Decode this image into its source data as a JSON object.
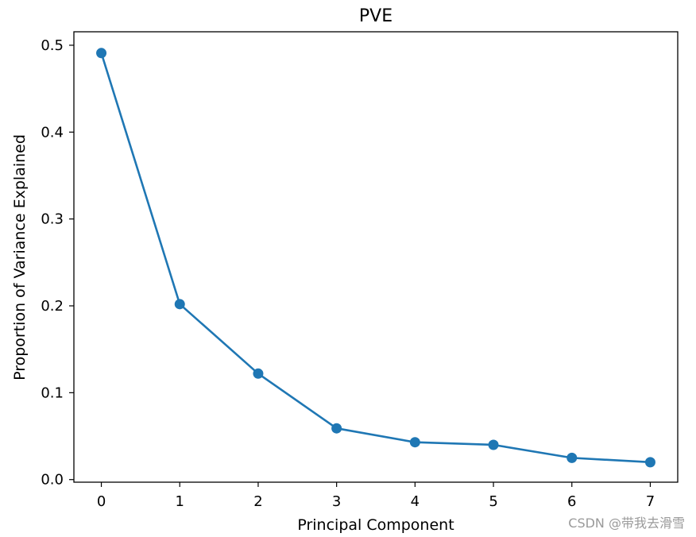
{
  "chart_data": {
    "type": "line",
    "title": "PVE",
    "xlabel": "Principal Component",
    "ylabel": "Proportion of Variance Explained",
    "x": [
      0,
      1,
      2,
      3,
      4,
      5,
      6,
      7
    ],
    "series": [
      {
        "name": "PVE",
        "values": [
          0.491,
          0.202,
          0.122,
          0.059,
          0.043,
          0.04,
          0.025,
          0.02
        ],
        "color": "#1f77b4",
        "marker": "circle"
      }
    ],
    "xlim": [
      -0.35,
      7.35
    ],
    "ylim": [
      -0.003,
      0.5155
    ],
    "xticks": [
      "0",
      "1",
      "2",
      "3",
      "4",
      "5",
      "6",
      "7"
    ],
    "yticks": [
      "0.0",
      "0.1",
      "0.2",
      "0.3",
      "0.4",
      "0.5"
    ],
    "grid": false
  },
  "watermark": "CSDN @带我去滑雪"
}
